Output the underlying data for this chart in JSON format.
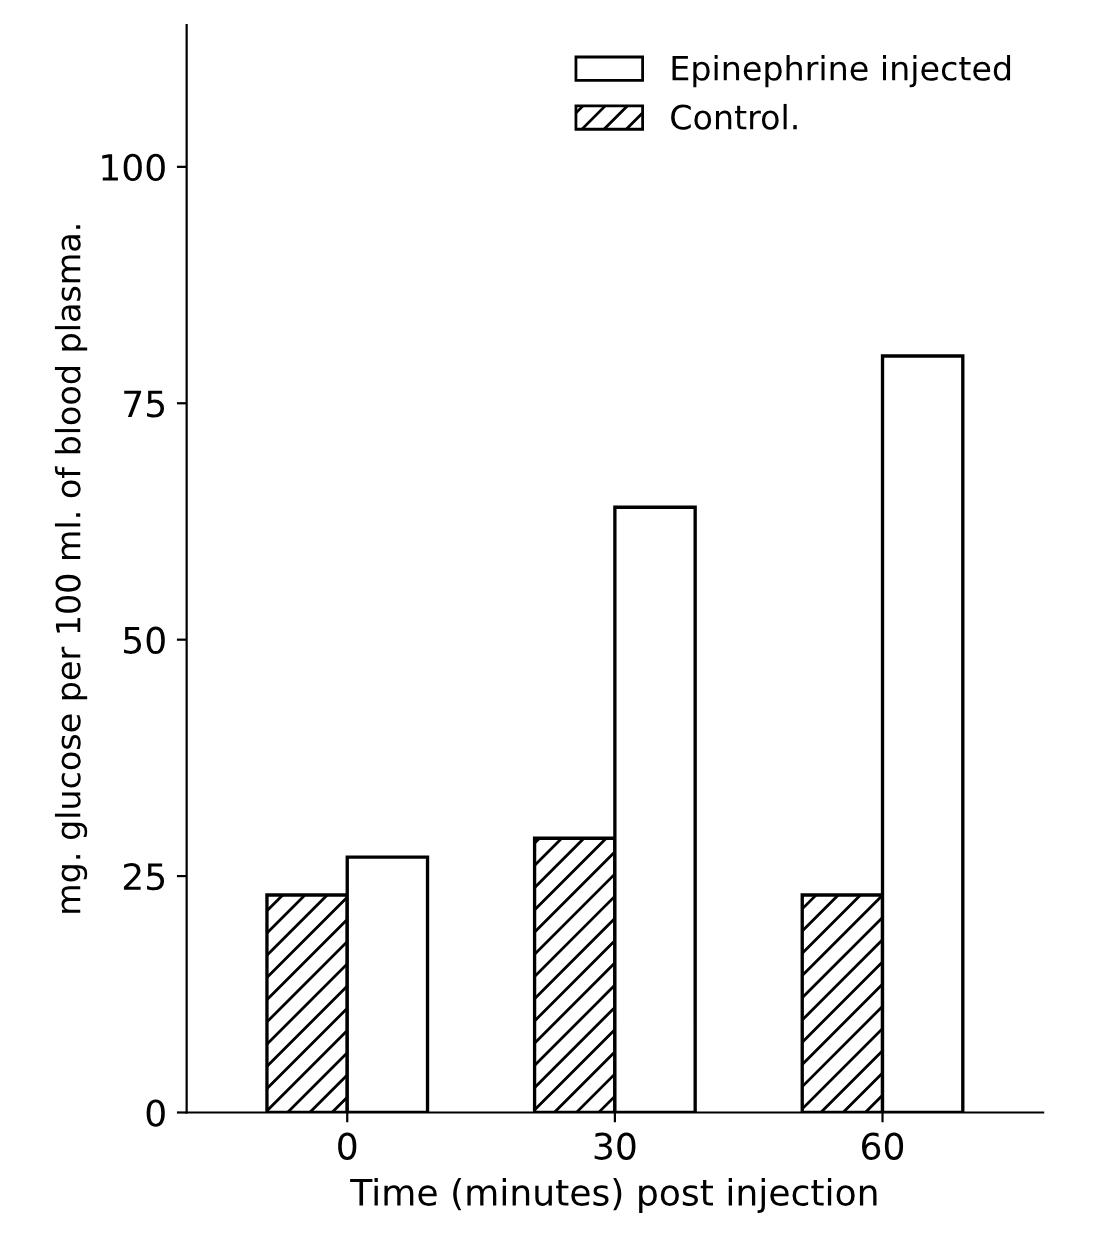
{
  "chart_data": {
    "type": "bar",
    "xlabel": "Time (minutes) post injection",
    "ylabel": "mg. glucose per 100 ml. of blood plasma.",
    "categories": [
      "0",
      "30",
      "60"
    ],
    "series": [
      {
        "name": "Control.",
        "color": "#000000",
        "values": [
          23,
          29,
          23
        ]
      },
      {
        "name": "Epinephrine injected",
        "color": "#ffffff",
        "values": [
          27,
          64,
          80
        ]
      }
    ],
    "ylim": [
      0,
      115
    ],
    "yticks": [
      0,
      25,
      50,
      75,
      100
    ],
    "grid": false,
    "legend": "top right"
  }
}
